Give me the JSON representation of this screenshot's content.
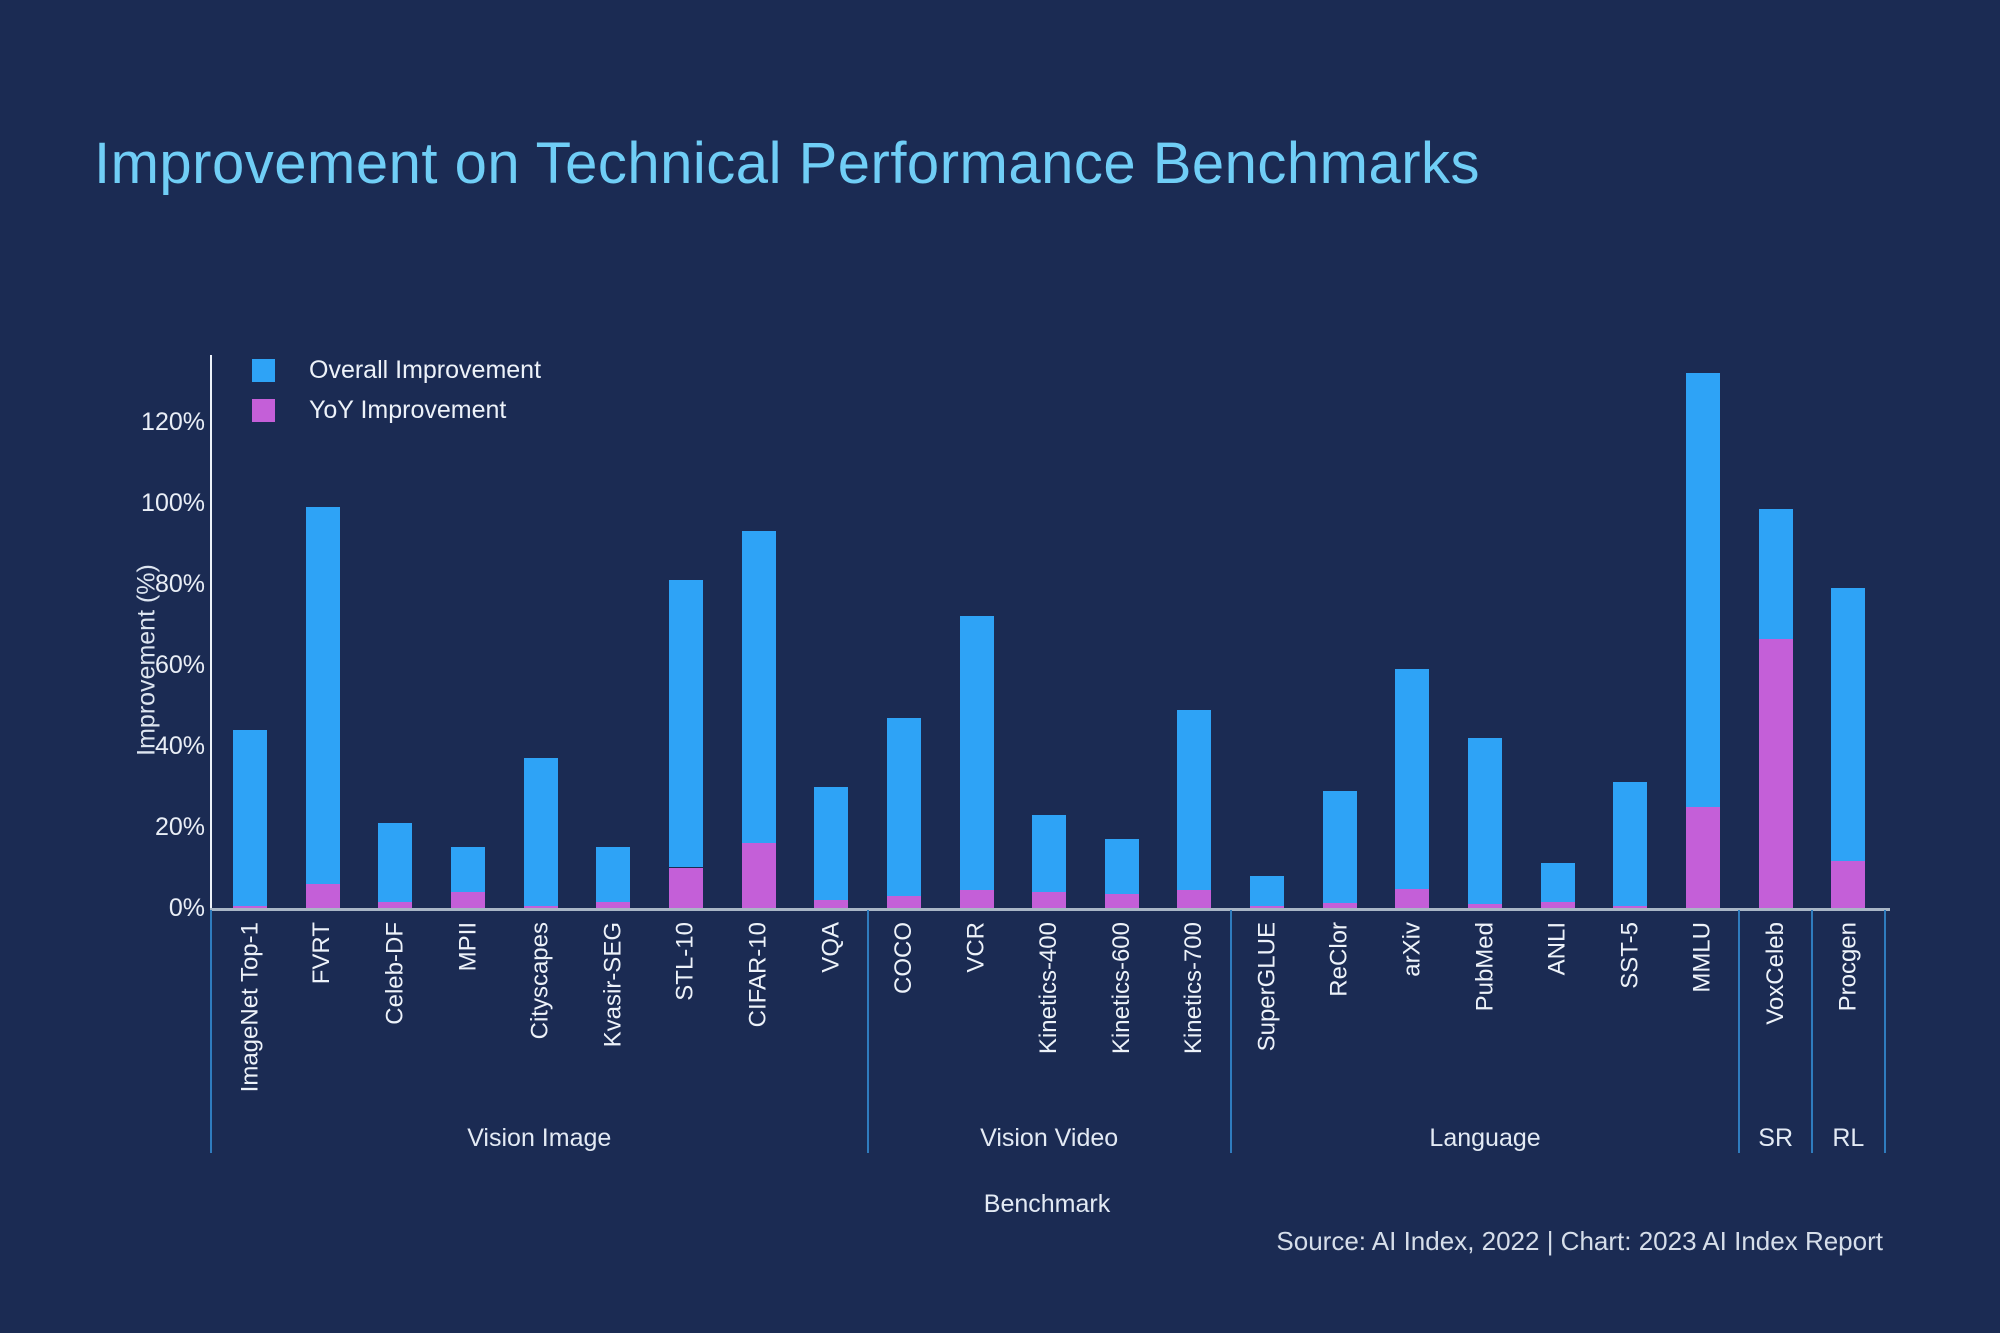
{
  "title": "Improvement on Technical Performance Benchmarks",
  "colors": {
    "background": "#1B2B53",
    "overall_bar": "#2EA3F6",
    "yoy_bar": "#C45FD8",
    "title_text": "#70CEF6",
    "divider_line": "#2F7CBE",
    "axis_line": "#A9B6C6"
  },
  "legend": {
    "items": [
      {
        "label": "Overall Improvement",
        "color": "#2EA3F6"
      },
      {
        "label": "YoY Improvement",
        "color": "#C45FD8"
      }
    ],
    "position": "top-left-inside"
  },
  "y_axis": {
    "label": "Improvement (%)",
    "ticks": [
      "0%",
      "20%",
      "40%",
      "60%",
      "80%",
      "100%",
      "120%"
    ]
  },
  "x_axis": {
    "label": "Benchmark"
  },
  "source": "Source: AI Index, 2022 | Chart: 2023 AI Index Report",
  "chart_data": {
    "type": "bar",
    "stacked": true,
    "ylabel": "Improvement (%)",
    "xlabel": "Benchmark",
    "ylim": [
      0,
      140
    ],
    "grid": false,
    "legend_position": "upper left",
    "series_names": [
      "Overall Improvement",
      "YoY Improvement"
    ],
    "groups": [
      {
        "name": "Vision Image",
        "items": [
          {
            "label": "ImageNet Top-1",
            "overall": 44,
            "yoy": 0.5
          },
          {
            "label": "FVRT",
            "overall": 99,
            "yoy": 6
          },
          {
            "label": "Celeb-DF",
            "overall": 21,
            "yoy": 1.5
          },
          {
            "label": "MPII",
            "overall": 15,
            "yoy": 4
          },
          {
            "label": "Cityscapes",
            "overall": 37,
            "yoy": 0.5
          },
          {
            "label": "Kvasir-SEG",
            "overall": 15,
            "yoy": 1.5
          },
          {
            "label": "STL-10",
            "overall": 81,
            "yoy": 10
          },
          {
            "label": "CIFAR-10",
            "overall": 93,
            "yoy": 16
          },
          {
            "label": "VQA",
            "overall": 30,
            "yoy": 2
          }
        ]
      },
      {
        "name": "Vision Video",
        "items": [
          {
            "label": "COCO",
            "overall": 47,
            "yoy": 3
          },
          {
            "label": "VCR",
            "overall": 72,
            "yoy": 4.5
          },
          {
            "label": "Kinetics-400",
            "overall": 23,
            "yoy": 4
          },
          {
            "label": "Kinetics-600",
            "overall": 17,
            "yoy": 3.5
          },
          {
            "label": "Kinetics-700",
            "overall": 49,
            "yoy": 4.5
          }
        ]
      },
      {
        "name": "Language",
        "items": [
          {
            "label": "SuperGLUE",
            "overall": 8,
            "yoy": 0.5
          },
          {
            "label": "ReClor",
            "overall": 29,
            "yoy": 1.3
          },
          {
            "label": "arXiv",
            "overall": 59,
            "yoy": 4.7
          },
          {
            "label": "PubMed",
            "overall": 42,
            "yoy": 1
          },
          {
            "label": "ANLI",
            "overall": 11,
            "yoy": 1.6
          },
          {
            "label": "SST-5",
            "overall": 31,
            "yoy": 0.5
          },
          {
            "label": "MMLU",
            "overall": 132,
            "yoy": 25
          }
        ]
      },
      {
        "name": "SR",
        "items": [
          {
            "label": "VoxCeleb",
            "overall": 98.5,
            "yoy": 66.5
          }
        ]
      },
      {
        "name": "RL",
        "items": [
          {
            "label": "Procgen",
            "overall": 79,
            "yoy": 11.5
          }
        ]
      }
    ]
  }
}
